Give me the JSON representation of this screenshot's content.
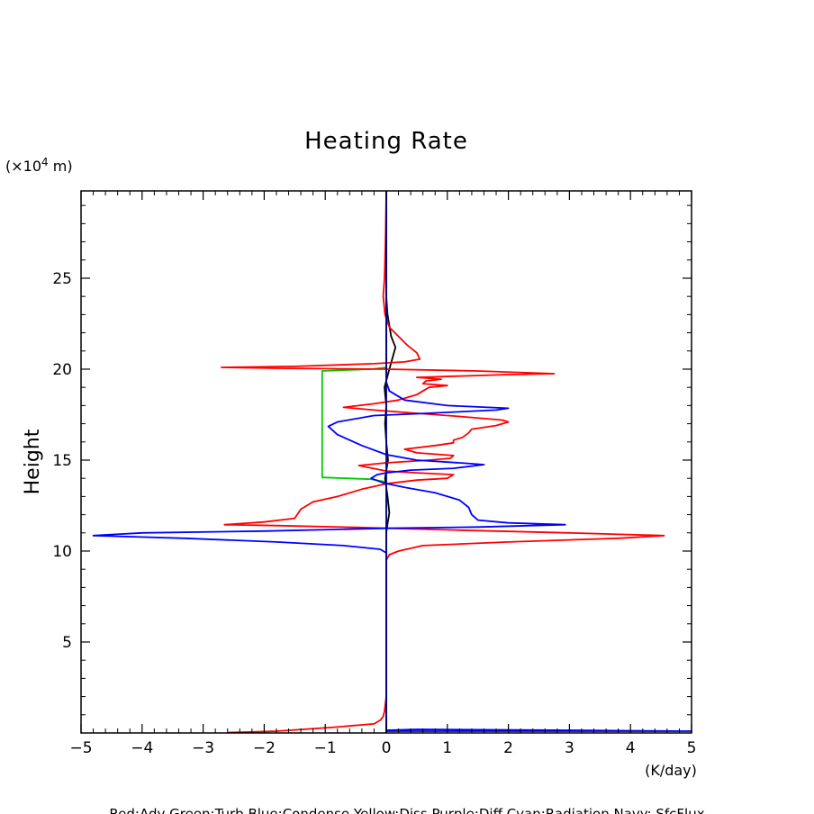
{
  "chart_data": {
    "type": "line",
    "title": "Heating Rate",
    "ylabel": "Height",
    "y_unit_prefix": "(×10",
    "y_unit_exp": "4",
    "y_unit_suffix": " m)",
    "x_unit": "(K/day)",
    "xlim": [
      -5,
      5
    ],
    "ylim": [
      0,
      29.8
    ],
    "x_ticks": [
      -5,
      -4,
      -3,
      -2,
      -1,
      0,
      1,
      2,
      3,
      4,
      5
    ],
    "x_tick_labels": [
      "−5",
      "−4",
      "−3",
      "−2",
      "−1",
      "0",
      "1",
      "2",
      "3",
      "4",
      "5"
    ],
    "y_ticks": [
      5,
      10,
      15,
      20,
      25
    ],
    "y_tick_labels": [
      "5",
      "10",
      "15",
      "20",
      "25"
    ],
    "grid": false,
    "footer": "Red:Adv  Green:Turb  Blue:Condense  Yellow:Diss  Purple:Diff  Cyan:Radiation  Navy: SfcFlux",
    "series": [
      {
        "color": "#00c800",
        "points": [
          [
            0,
            0
          ],
          [
            0,
            13.8
          ],
          [
            -0.25,
            13.95
          ],
          [
            -1.05,
            14.05
          ],
          [
            -1.05,
            19.9
          ],
          [
            -0.25,
            20.0
          ],
          [
            0,
            20.1
          ],
          [
            0,
            29.8
          ]
        ]
      },
      {
        "color": "#000000",
        "points": [
          [
            0,
            0
          ],
          [
            0,
            11.0
          ],
          [
            0.02,
            11.5
          ],
          [
            0.05,
            12.1
          ],
          [
            0.02,
            13.0
          ],
          [
            -0.02,
            14.0
          ],
          [
            0.03,
            15.0
          ],
          [
            0.0,
            16.0
          ],
          [
            -0.02,
            17.0
          ],
          [
            0.0,
            18.0
          ],
          [
            -0.03,
            19.0
          ],
          [
            0.05,
            20.0
          ],
          [
            0.1,
            20.6
          ],
          [
            0.15,
            21.2
          ],
          [
            0.08,
            21.8
          ],
          [
            0.05,
            22.4
          ],
          [
            0.02,
            23.0
          ],
          [
            0,
            24.0
          ],
          [
            0,
            29.8
          ]
        ]
      },
      {
        "color": "#ff0000",
        "points": [
          [
            -2.6,
            0.02
          ],
          [
            -1.8,
            0.1
          ],
          [
            -0.9,
            0.3
          ],
          [
            -0.2,
            0.5
          ],
          [
            -0.1,
            0.7
          ],
          [
            -0.05,
            0.9
          ],
          [
            -0.03,
            1.2
          ],
          [
            0,
            2.0
          ],
          [
            0,
            9.0
          ],
          [
            0,
            9.5
          ],
          [
            0.05,
            9.8
          ],
          [
            0.2,
            10.0
          ],
          [
            0.6,
            10.3
          ],
          [
            2.0,
            10.5
          ],
          [
            3.8,
            10.7
          ],
          [
            4.55,
            10.85
          ],
          [
            3.0,
            11.0
          ],
          [
            1.2,
            11.15
          ],
          [
            -0.5,
            11.3
          ],
          [
            -1.8,
            11.4
          ],
          [
            -2.65,
            11.45
          ],
          [
            -2.0,
            11.6
          ],
          [
            -1.5,
            11.8
          ],
          [
            -1.4,
            12.3
          ],
          [
            -1.2,
            12.7
          ],
          [
            -0.8,
            13.0
          ],
          [
            -0.4,
            13.4
          ],
          [
            0,
            13.7
          ],
          [
            0.5,
            13.9
          ],
          [
            1.0,
            14.0
          ],
          [
            1.1,
            14.2
          ],
          [
            0.5,
            14.3
          ],
          [
            0,
            14.4
          ],
          [
            -0.45,
            14.7
          ],
          [
            0,
            14.85
          ],
          [
            0.7,
            15.0
          ],
          [
            1.05,
            15.1
          ],
          [
            1.1,
            15.25
          ],
          [
            0.5,
            15.4
          ],
          [
            0.3,
            15.6
          ],
          [
            0.8,
            15.8
          ],
          [
            1.1,
            15.95
          ],
          [
            1.1,
            16.1
          ],
          [
            1.25,
            16.25
          ],
          [
            1.35,
            16.5
          ],
          [
            1.4,
            16.7
          ],
          [
            1.8,
            16.9
          ],
          [
            2.0,
            17.1
          ],
          [
            1.9,
            17.2
          ],
          [
            1.2,
            17.4
          ],
          [
            0.4,
            17.6
          ],
          [
            -0.2,
            17.75
          ],
          [
            -0.7,
            17.9
          ],
          [
            -0.2,
            18.1
          ],
          [
            0.2,
            18.3
          ],
          [
            0.5,
            18.6
          ],
          [
            0.6,
            18.8
          ],
          [
            0.7,
            19.0
          ],
          [
            1.0,
            19.1
          ],
          [
            0.6,
            19.2
          ],
          [
            0.65,
            19.35
          ],
          [
            0.9,
            19.45
          ],
          [
            0.5,
            19.55
          ],
          [
            2.0,
            19.7
          ],
          [
            2.75,
            19.75
          ],
          [
            1.5,
            19.9
          ],
          [
            0,
            20.0
          ],
          [
            -1.8,
            20.05
          ],
          [
            -2.7,
            20.1
          ],
          [
            -1.5,
            20.15
          ],
          [
            -0.2,
            20.3
          ],
          [
            0.3,
            20.4
          ],
          [
            0.55,
            20.55
          ],
          [
            0.5,
            20.9
          ],
          [
            0.35,
            21.3
          ],
          [
            0.2,
            21.8
          ],
          [
            0.05,
            22.3
          ],
          [
            -0.02,
            23.0
          ],
          [
            -0.05,
            24.0
          ],
          [
            -0.03,
            25.0
          ],
          [
            -0.02,
            26.0
          ],
          [
            -0.01,
            27.5
          ],
          [
            0,
            29.8
          ]
        ]
      },
      {
        "color": "#0000ff",
        "points": [
          [
            0,
            0
          ],
          [
            0,
            0.15
          ],
          [
            0.5,
            0.2
          ],
          [
            1.5,
            0.18
          ],
          [
            3.0,
            0.15
          ],
          [
            5.0,
            0.1
          ],
          [
            0,
            0.1
          ],
          [
            0,
            9.5
          ],
          [
            0,
            9.9
          ],
          [
            -0.1,
            10.1
          ],
          [
            -0.7,
            10.3
          ],
          [
            -1.8,
            10.5
          ],
          [
            -3.3,
            10.7
          ],
          [
            -4.8,
            10.85
          ],
          [
            -4.0,
            11.0
          ],
          [
            -2.0,
            11.1
          ],
          [
            0,
            11.25
          ],
          [
            1.5,
            11.32
          ],
          [
            2.93,
            11.45
          ],
          [
            2.0,
            11.55
          ],
          [
            1.5,
            11.7
          ],
          [
            1.4,
            12.0
          ],
          [
            1.35,
            12.4
          ],
          [
            1.2,
            12.8
          ],
          [
            0.8,
            13.2
          ],
          [
            0.3,
            13.5
          ],
          [
            -0.05,
            13.75
          ],
          [
            -0.25,
            14.0
          ],
          [
            -0.15,
            14.2
          ],
          [
            0,
            14.3
          ],
          [
            0.4,
            14.45
          ],
          [
            1.1,
            14.55
          ],
          [
            1.6,
            14.75
          ],
          [
            1.2,
            14.85
          ],
          [
            0.5,
            15.0
          ],
          [
            0,
            15.3
          ],
          [
            -0.4,
            15.8
          ],
          [
            -0.8,
            16.4
          ],
          [
            -0.95,
            16.85
          ],
          [
            -0.8,
            17.1
          ],
          [
            -0.2,
            17.45
          ],
          [
            0.5,
            17.55
          ],
          [
            1.8,
            17.75
          ],
          [
            2.0,
            17.85
          ],
          [
            1.0,
            18.0
          ],
          [
            0.3,
            18.3
          ],
          [
            0.05,
            18.8
          ],
          [
            0,
            19.3
          ],
          [
            0,
            29.8
          ]
        ]
      },
      {
        "color": "#000080",
        "points": [
          [
            0,
            0
          ],
          [
            0,
            29.8
          ]
        ]
      }
    ]
  }
}
